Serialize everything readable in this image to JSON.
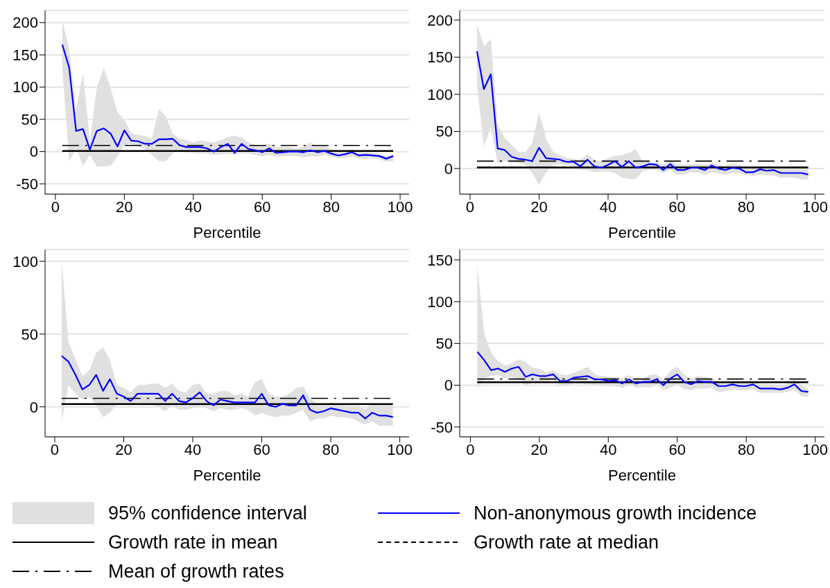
{
  "chart_data": [
    {
      "type": "line",
      "xlabel": "Percentile",
      "x": [
        2,
        4,
        6,
        8,
        10,
        12,
        14,
        16,
        18,
        20,
        22,
        24,
        26,
        28,
        30,
        32,
        34,
        36,
        38,
        40,
        42,
        44,
        46,
        48,
        50,
        52,
        54,
        56,
        58,
        60,
        62,
        64,
        66,
        68,
        70,
        72,
        74,
        76,
        78,
        80,
        82,
        84,
        86,
        88,
        90,
        92,
        94,
        96,
        98
      ],
      "xlim": [
        -3,
        102.6
      ],
      "xticks": [
        0,
        20,
        40,
        60,
        80,
        100
      ],
      "ylim": [
        -66,
        219
      ],
      "yticks": [
        -50,
        0,
        50,
        100,
        150,
        200
      ],
      "grid": "y",
      "series": [
        {
          "color": "#0000ff",
          "values": [
            166,
            130,
            32,
            35,
            3,
            32,
            36,
            28,
            8,
            33,
            17,
            16,
            12,
            12,
            19,
            19,
            20,
            10,
            7,
            7,
            7,
            5,
            0,
            7,
            12,
            -2,
            12,
            4,
            2,
            -1,
            5,
            -2,
            -1,
            0,
            0,
            -1,
            2,
            -1,
            1,
            -3,
            -6,
            -4,
            -1,
            -6,
            -5,
            -6,
            -7,
            -11,
            -7
          ],
          "lower": [
            130,
            -15,
            5,
            -22,
            -5,
            -23,
            -23,
            -22,
            -8,
            10,
            12,
            8,
            3,
            -5,
            -15,
            -15,
            -3,
            2,
            -2,
            -2,
            -3,
            -3,
            -5,
            -4,
            -3,
            -5,
            -3,
            -3,
            -5,
            -7,
            -5,
            -8,
            -7,
            -7,
            -7,
            -9,
            -7,
            -8,
            -5,
            -8,
            -10,
            -10,
            -7,
            -11,
            -11,
            -11,
            -12,
            -16,
            -15
          ],
          "upper": [
            204,
            159,
            65,
            121,
            16,
            99,
            130,
            99,
            61,
            49,
            28,
            26,
            24,
            20,
            66,
            55,
            28,
            20,
            18,
            14,
            17,
            16,
            14,
            18,
            22,
            25,
            22,
            14,
            10,
            10,
            12,
            8,
            7,
            7,
            5,
            8,
            14,
            8,
            10,
            3,
            1,
            2,
            3,
            -1,
            -1,
            -2,
            -3,
            -7,
            -3
          ]
        }
      ],
      "ref_lines": [
        {
          "axis": "y",
          "value": 1,
          "color": "#000000",
          "line_style": "dashed"
        },
        {
          "axis": "y",
          "value": 1,
          "color": "#000000",
          "line_style": "solid"
        },
        {
          "axis": "y",
          "value": 9.5,
          "color": "#000000",
          "line_style": "dashdot"
        }
      ]
    },
    {
      "type": "line",
      "xlabel": "Percentile",
      "x": [
        2,
        4,
        6,
        8,
        10,
        12,
        14,
        16,
        18,
        20,
        22,
        24,
        26,
        28,
        30,
        32,
        34,
        36,
        38,
        40,
        42,
        44,
        46,
        48,
        50,
        52,
        54,
        56,
        58,
        60,
        62,
        64,
        66,
        68,
        70,
        72,
        74,
        76,
        78,
        80,
        82,
        84,
        86,
        88,
        90,
        92,
        94,
        96,
        98
      ],
      "xlim": [
        -3,
        102.7
      ],
      "xticks": [
        0,
        20,
        40,
        60,
        80,
        100
      ],
      "ylim": [
        -34.5,
        213
      ],
      "yticks": [
        0,
        50,
        100,
        150,
        200
      ],
      "grid": "y",
      "series": [
        {
          "color": "#0000ff",
          "values": [
            158,
            107,
            127,
            27,
            25,
            16,
            13,
            12,
            10,
            28,
            14,
            13,
            12,
            9,
            9,
            3,
            12,
            3,
            1,
            5,
            10,
            2,
            10,
            1,
            3,
            6,
            5,
            -2,
            6,
            -2,
            -2,
            1,
            1,
            -2,
            4,
            0,
            -2,
            1,
            0,
            -5,
            -5,
            -1,
            -3,
            -2,
            -6,
            -6,
            -6,
            -6,
            -8
          ],
          "lower": [
            113,
            30,
            55,
            7,
            10,
            9,
            8,
            5,
            -6,
            -22,
            -6,
            5,
            6,
            5,
            3,
            -2,
            -2,
            -5,
            -4,
            -4,
            -6,
            -12,
            -14,
            -14,
            -4,
            -2,
            -2,
            -6,
            -2,
            -8,
            -8,
            -5,
            -5,
            -8,
            -5,
            -6,
            -8,
            -6,
            -6,
            -9,
            -10,
            -8,
            -9,
            -9,
            -12,
            -12,
            -12,
            -15,
            -15
          ],
          "upper": [
            194,
            165,
            174,
            59,
            41,
            32,
            23,
            22,
            34,
            76,
            41,
            23,
            18,
            14,
            13,
            12,
            19,
            12,
            10,
            14,
            17,
            18,
            21,
            26,
            10,
            9,
            8,
            5,
            10,
            6,
            5,
            6,
            6,
            5,
            8,
            5,
            4,
            7,
            5,
            1,
            1,
            2,
            2,
            3,
            0,
            0,
            1,
            0,
            -1
          ]
        }
      ],
      "ref_lines": [
        {
          "axis": "y",
          "value": 1.4,
          "color": "#000000",
          "line_style": "dashed"
        },
        {
          "axis": "y",
          "value": 1.4,
          "color": "#000000",
          "line_style": "solid"
        },
        {
          "axis": "y",
          "value": 10,
          "color": "#000000",
          "line_style": "dashdot"
        }
      ]
    },
    {
      "type": "line",
      "xlabel": "Percentile",
      "x": [
        2,
        4,
        6,
        8,
        10,
        12,
        14,
        16,
        18,
        20,
        22,
        24,
        26,
        28,
        30,
        32,
        34,
        36,
        38,
        40,
        42,
        44,
        46,
        48,
        50,
        52,
        54,
        56,
        58,
        60,
        62,
        64,
        66,
        68,
        70,
        72,
        74,
        76,
        78,
        80,
        82,
        84,
        86,
        88,
        90,
        92,
        94,
        96,
        98
      ],
      "xlim": [
        -2.8,
        102.7
      ],
      "xticks": [
        0,
        20,
        40,
        60,
        80,
        100
      ],
      "ylim": [
        -20.6,
        108
      ],
      "yticks": [
        0,
        50,
        100
      ],
      "grid": "y",
      "series": [
        {
          "color": "#0000ff",
          "values": [
            35,
            31,
            22,
            12,
            15,
            22,
            11,
            19,
            9,
            7,
            4,
            9,
            9,
            9,
            9,
            4,
            9,
            4,
            3,
            6,
            10,
            4,
            1,
            5,
            4,
            3,
            3,
            3,
            3,
            9,
            1,
            0,
            2,
            1,
            1,
            8,
            -2,
            -4,
            -3,
            -1,
            -2,
            -3,
            -4,
            -4,
            -8,
            -4,
            -6,
            -6,
            -7
          ],
          "lower": [
            -10,
            15,
            9,
            5,
            7,
            1,
            -7,
            -4,
            2,
            2,
            1,
            3,
            2,
            2,
            0,
            -3,
            1,
            -2,
            -2,
            -1,
            0,
            -1,
            -3,
            -1,
            -2,
            -2,
            -1,
            -2,
            -6,
            -4,
            -6,
            -7,
            -6,
            -6,
            -4,
            -2,
            -10,
            -8,
            -8,
            -6,
            -7,
            -7,
            -8,
            -10,
            -12,
            -10,
            -13,
            -13,
            -13
          ],
          "upper": [
            101,
            44,
            33,
            21,
            25,
            37,
            41,
            32,
            15,
            13,
            10,
            15,
            15,
            16,
            16,
            13,
            16,
            11,
            10,
            15,
            16,
            9,
            9,
            11,
            11,
            8,
            9,
            7,
            17,
            19,
            9,
            7,
            7,
            9,
            13,
            14,
            6,
            2,
            2,
            3,
            2,
            1,
            1,
            1,
            -2,
            3,
            1,
            2,
            1
          ]
        }
      ],
      "ref_lines": [
        {
          "axis": "y",
          "value": 1.9,
          "color": "#000000",
          "line_style": "dashed"
        },
        {
          "axis": "y",
          "value": 1.9,
          "color": "#000000",
          "line_style": "solid"
        },
        {
          "axis": "y",
          "value": 5.8,
          "color": "#000000",
          "line_style": "dashdot"
        }
      ]
    },
    {
      "type": "line",
      "xlabel": "Percentile",
      "x": [
        2,
        4,
        6,
        8,
        10,
        12,
        14,
        16,
        18,
        20,
        22,
        24,
        26,
        28,
        30,
        32,
        34,
        36,
        38,
        40,
        42,
        44,
        46,
        48,
        50,
        52,
        54,
        56,
        58,
        60,
        62,
        64,
        66,
        68,
        70,
        72,
        74,
        76,
        78,
        80,
        82,
        84,
        86,
        88,
        90,
        92,
        94,
        96,
        98
      ],
      "xlim": [
        -3.1,
        102.7
      ],
      "xticks": [
        0,
        20,
        40,
        60,
        80,
        100
      ],
      "ylim": [
        -61.8,
        162.3
      ],
      "yticks": [
        -50,
        0,
        50,
        100,
        150
      ],
      "grid": "y",
      "legend": "bottom",
      "annotations": [
        "95% confidence interval"
      ],
      "series": [
        {
          "name": "Non-anonymous growth incidence",
          "color": "#0000ff",
          "values": [
            40,
            30,
            18,
            20,
            16,
            20,
            22,
            10,
            13,
            11,
            11,
            13,
            5,
            5,
            9,
            10,
            11,
            7,
            7,
            5,
            6,
            2,
            7,
            2,
            4,
            4,
            7,
            0,
            8,
            13,
            4,
            1,
            5,
            4,
            4,
            -1,
            -1,
            1,
            -1,
            -1,
            1,
            -4,
            -4,
            -4,
            -5,
            -3,
            1,
            -7,
            -8
          ],
          "lower": [
            -3,
            8,
            11,
            12,
            8,
            10,
            7,
            -1,
            4,
            4,
            4,
            7,
            -1,
            0,
            2,
            2,
            1,
            0,
            0,
            -1,
            -1,
            -3,
            1,
            -3,
            -2,
            -3,
            1,
            -6,
            -3,
            1,
            -5,
            -6,
            -4,
            -4,
            -3,
            -8,
            -7,
            -5,
            -6,
            -6,
            -5,
            -9,
            -9,
            -9,
            -9,
            -8,
            -5,
            -13,
            -14
          ],
          "upper": [
            144,
            62,
            39,
            29,
            24,
            26,
            31,
            28,
            21,
            20,
            15,
            18,
            13,
            12,
            15,
            18,
            22,
            13,
            11,
            10,
            10,
            8,
            12,
            8,
            8,
            12,
            13,
            7,
            17,
            22,
            13,
            8,
            11,
            10,
            8,
            4,
            4,
            5,
            4,
            3,
            5,
            2,
            1,
            1,
            0,
            2,
            7,
            0,
            -5
          ]
        }
      ],
      "ref_lines": [
        {
          "axis": "y",
          "value": 3.6,
          "label": "Growth rate at median",
          "color": "#000000",
          "line_style": "dashed"
        },
        {
          "axis": "y",
          "value": 3.6,
          "label": "Growth rate in mean",
          "color": "#000000",
          "line_style": "solid"
        },
        {
          "axis": "y",
          "value": 7.4,
          "label": "Mean of growth rates",
          "color": "#000000",
          "line_style": "dashdot"
        }
      ]
    }
  ]
}
